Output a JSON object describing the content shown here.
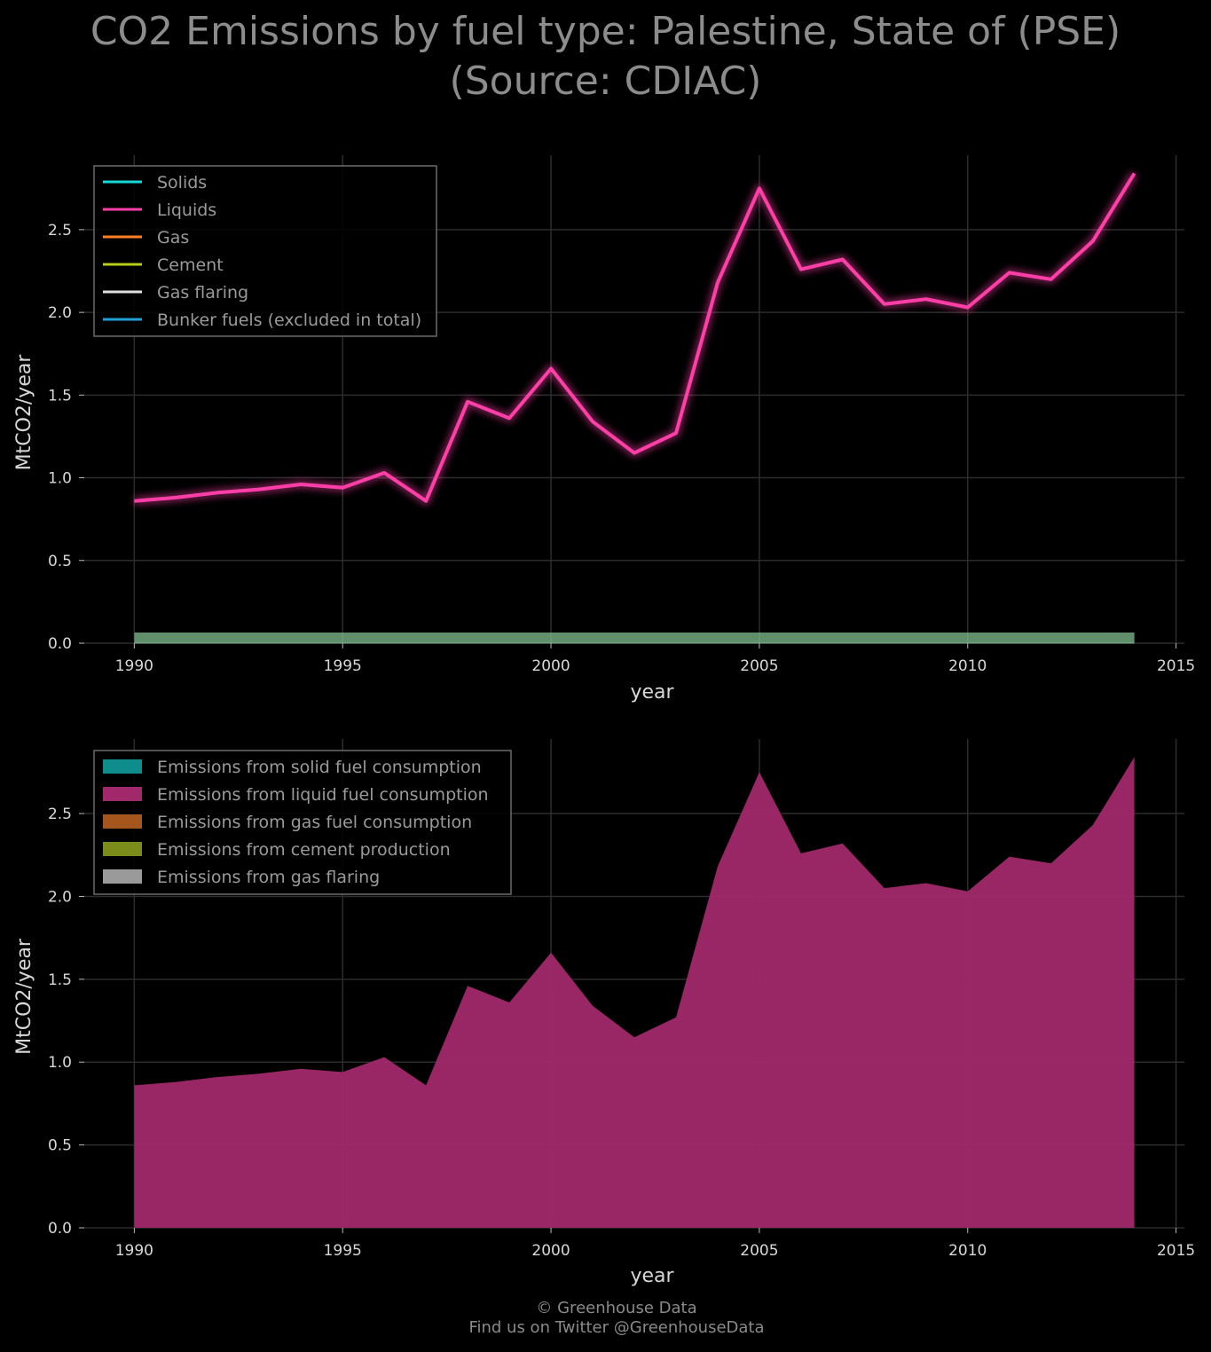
{
  "title_line1": "CO2 Emissions by fuel type: Palestine, State of (PSE)",
  "title_line2": "(Source: CDIAC)",
  "footer_line1": "© Greenhouse Data",
  "footer_line2": "Find us on Twitter @GreenhouseData",
  "chart_data": [
    {
      "type": "line",
      "xlabel": "year",
      "ylabel": "MtCO2/year",
      "xlim": [
        1988.8,
        2015.2
      ],
      "ylim": [
        0,
        2.95
      ],
      "xticks": [
        1990,
        1995,
        2000,
        2005,
        2010,
        2015
      ],
      "yticks": [
        "0.0",
        "0.5",
        "1.0",
        "1.5",
        "2.0",
        "2.5"
      ],
      "grid": true,
      "legend_position": "top-left",
      "x": [
        1990,
        1991,
        1992,
        1993,
        1994,
        1995,
        1996,
        1997,
        1998,
        1999,
        2000,
        2001,
        2002,
        2003,
        2004,
        2005,
        2006,
        2007,
        2008,
        2009,
        2010,
        2011,
        2012,
        2013,
        2014
      ],
      "series": [
        {
          "name": "Solids",
          "color": "#17d7d7",
          "values": [
            0,
            0,
            0,
            0,
            0,
            0,
            0,
            0,
            0,
            0,
            0,
            0,
            0,
            0,
            0,
            0,
            0,
            0,
            0,
            0,
            0,
            0,
            0,
            0,
            0
          ]
        },
        {
          "name": "Liquids",
          "color": "#ff3fa7",
          "values": [
            0.86,
            0.88,
            0.91,
            0.93,
            0.96,
            0.94,
            1.03,
            0.86,
            1.46,
            1.36,
            1.66,
            1.34,
            1.15,
            1.27,
            2.18,
            2.75,
            2.26,
            2.32,
            2.05,
            2.08,
            2.03,
            2.24,
            2.2,
            2.43,
            2.84
          ]
        },
        {
          "name": "Gas",
          "color": "#ff7f27",
          "values": [
            0,
            0,
            0,
            0,
            0,
            0,
            0,
            0,
            0,
            0,
            0,
            0,
            0,
            0,
            0,
            0,
            0,
            0,
            0,
            0,
            0,
            0,
            0,
            0,
            0
          ]
        },
        {
          "name": "Cement",
          "color": "#b8cc1a",
          "values": [
            0,
            0,
            0,
            0,
            0,
            0,
            0,
            0,
            0,
            0,
            0,
            0,
            0,
            0,
            0,
            0,
            0,
            0,
            0,
            0,
            0,
            0,
            0,
            0,
            0
          ]
        },
        {
          "name": "Gas flaring",
          "color": "#e0e0e0",
          "values": [
            0,
            0,
            0,
            0,
            0,
            0,
            0,
            0,
            0,
            0,
            0,
            0,
            0,
            0,
            0,
            0,
            0,
            0,
            0,
            0,
            0,
            0,
            0,
            0,
            0
          ]
        },
        {
          "name": "Bunker fuels (excluded in total)",
          "color": "#1f9fd6",
          "values": [
            0,
            0,
            0,
            0,
            0,
            0,
            0,
            0,
            0,
            0,
            0,
            0,
            0,
            0,
            0,
            0,
            0,
            0,
            0,
            0,
            0,
            0,
            0,
            0,
            0
          ]
        }
      ]
    },
    {
      "type": "area",
      "xlabel": "year",
      "ylabel": "MtCO2/year",
      "xlim": [
        1988.8,
        2015.2
      ],
      "ylim": [
        0,
        2.95
      ],
      "xticks": [
        1990,
        1995,
        2000,
        2005,
        2010,
        2015
      ],
      "yticks": [
        "0.0",
        "0.5",
        "1.0",
        "1.5",
        "2.0",
        "2.5"
      ],
      "grid": true,
      "legend_position": "top-left",
      "x": [
        1990,
        1991,
        1992,
        1993,
        1994,
        1995,
        1996,
        1997,
        1998,
        1999,
        2000,
        2001,
        2002,
        2003,
        2004,
        2005,
        2006,
        2007,
        2008,
        2009,
        2010,
        2011,
        2012,
        2013,
        2014
      ],
      "series": [
        {
          "name": "Emissions from solid fuel consumption",
          "color": "#0f8c8c",
          "values": [
            0,
            0,
            0,
            0,
            0,
            0,
            0,
            0,
            0,
            0,
            0,
            0,
            0,
            0,
            0,
            0,
            0,
            0,
            0,
            0,
            0,
            0,
            0,
            0,
            0
          ]
        },
        {
          "name": "Emissions from liquid fuel consumption",
          "color": "#a1286a",
          "values": [
            0.86,
            0.88,
            0.91,
            0.93,
            0.96,
            0.94,
            1.03,
            0.86,
            1.46,
            1.36,
            1.66,
            1.34,
            1.15,
            1.27,
            2.18,
            2.75,
            2.26,
            2.32,
            2.05,
            2.08,
            2.03,
            2.24,
            2.2,
            2.43,
            2.84
          ]
        },
        {
          "name": "Emissions from gas fuel consumption",
          "color": "#a5561c",
          "values": [
            0,
            0,
            0,
            0,
            0,
            0,
            0,
            0,
            0,
            0,
            0,
            0,
            0,
            0,
            0,
            0,
            0,
            0,
            0,
            0,
            0,
            0,
            0,
            0,
            0
          ]
        },
        {
          "name": "Emissions from cement production",
          "color": "#7b8c1a",
          "values": [
            0,
            0,
            0,
            0,
            0,
            0,
            0,
            0,
            0,
            0,
            0,
            0,
            0,
            0,
            0,
            0,
            0,
            0,
            0,
            0,
            0,
            0,
            0,
            0,
            0
          ]
        },
        {
          "name": "Emissions from gas flaring",
          "color": "#9a9a9a",
          "values": [
            0,
            0,
            0,
            0,
            0,
            0,
            0,
            0,
            0,
            0,
            0,
            0,
            0,
            0,
            0,
            0,
            0,
            0,
            0,
            0,
            0,
            0,
            0,
            0,
            0
          ]
        }
      ]
    }
  ]
}
